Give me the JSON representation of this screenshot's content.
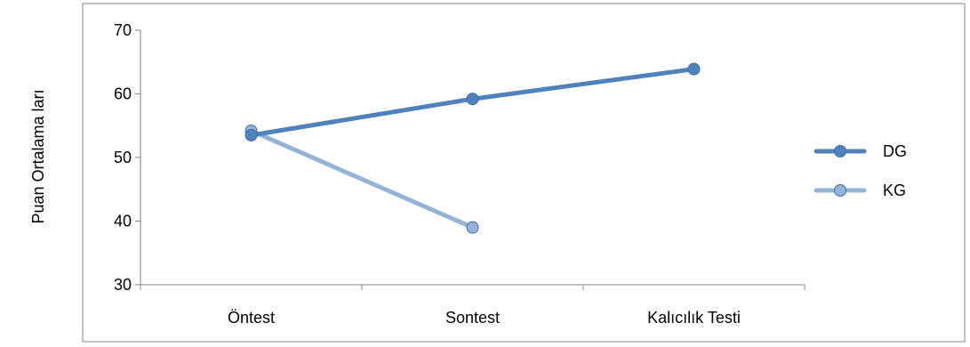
{
  "chart_data": {
    "type": "line",
    "title": "",
    "xlabel": "",
    "ylabel": "Puan Ortalama ları",
    "categories": [
      "Öntest",
      "Sontest",
      "Kalıcılık Testi"
    ],
    "ylim": [
      30,
      70
    ],
    "yticks": [
      30,
      40,
      50,
      60,
      70
    ],
    "grid": false,
    "legend": "right",
    "series": [
      {
        "name": "DG",
        "values": [
          53.5,
          59.2,
          63.9
        ],
        "color": "#4f81bd"
      },
      {
        "name": "KG",
        "values": [
          54.2,
          39.0,
          null
        ],
        "color": "#95b3d7"
      }
    ]
  }
}
